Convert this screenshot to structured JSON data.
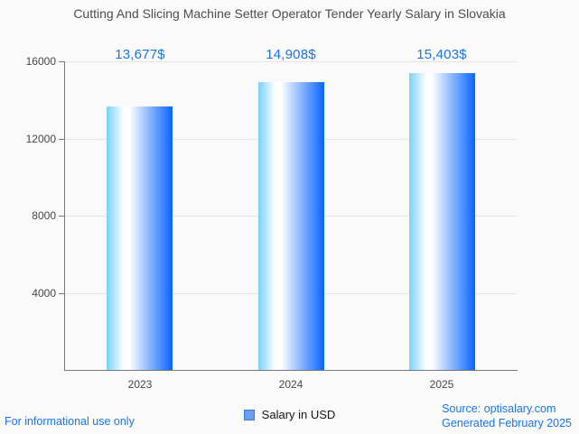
{
  "title": "Cutting And Slicing Machine Setter Operator Tender Yearly Salary in Slovakia",
  "legend": {
    "label": "Salary in USD"
  },
  "footer": {
    "disclaimer": "For informational use only",
    "source": "Source: optisalary.com",
    "generated": "Generated February 2025"
  },
  "colors": {
    "background": "#fafafa",
    "title_text": "#4d4d4d",
    "axis_line": "#787878",
    "gridline": "#e6e6e6",
    "tick_text": "#464646",
    "value_label": "#1a73e8",
    "footer_text": "#1a73e8",
    "legend_swatch_fill": "#6d9eeb",
    "legend_swatch_border": "#3c78d8",
    "bar_gradient": [
      "#79d1fa",
      "#ffffff",
      "#0764ff"
    ]
  },
  "chart_data": {
    "type": "bar",
    "title": "Cutting And Slicing Machine Setter Operator Tender Yearly Salary in Slovakia",
    "categories": [
      "2023",
      "2024",
      "2025"
    ],
    "series": [
      {
        "name": "Salary in USD",
        "values": [
          13677,
          14908,
          15403
        ]
      }
    ],
    "value_labels": [
      "13,677$",
      "14,908$",
      "15,403$"
    ],
    "xlabel": "",
    "ylabel": "",
    "ylim": [
      0,
      16000
    ],
    "yticks": [
      4000,
      8000,
      12000,
      16000
    ],
    "grid": true,
    "legend_position": "bottom"
  }
}
